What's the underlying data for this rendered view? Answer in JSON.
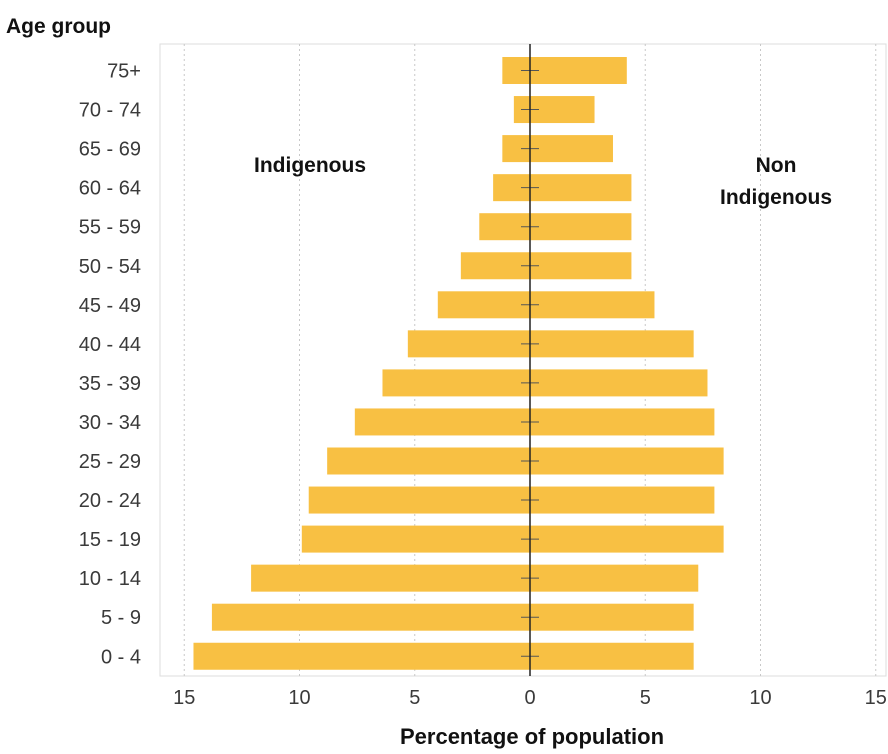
{
  "chart_data": {
    "type": "bar",
    "orientation": "horizontal",
    "subtype": "population-pyramid",
    "ylabel": "Age group",
    "xlabel": "Percentage of population",
    "categories": [
      "75+",
      "70 - 74",
      "65 - 69",
      "60 - 64",
      "55 - 59",
      "50 - 54",
      "45 - 49",
      "40 - 44",
      "35 - 39",
      "30 - 34",
      "25 - 29",
      "20 - 24",
      "15 - 19",
      "10 - 14",
      "5 - 9",
      "0 - 4"
    ],
    "series": [
      {
        "name": "Indigenous",
        "side": "left",
        "values": [
          1.2,
          0.7,
          1.2,
          1.6,
          2.2,
          3.0,
          4.0,
          5.3,
          6.4,
          7.6,
          8.8,
          9.6,
          9.9,
          12.1,
          13.8,
          14.6
        ]
      },
      {
        "name": "Non Indigenous",
        "side": "right",
        "values": [
          4.2,
          2.8,
          3.6,
          4.4,
          4.4,
          4.4,
          5.4,
          7.1,
          7.7,
          8.0,
          8.4,
          8.0,
          8.4,
          7.3,
          7.1,
          7.1
        ]
      }
    ],
    "series_labels": {
      "left": "Indigenous",
      "right_line1": "Non",
      "right_line2": "Indigenous"
    },
    "xticks": [
      "15",
      "10",
      "5",
      "0",
      "5",
      "10",
      "15"
    ],
    "xlim": [
      -15,
      15
    ],
    "grid": true,
    "bar_color": "#f8c043",
    "axis_color": "#222222",
    "grid_color": "#c8c8c8"
  }
}
